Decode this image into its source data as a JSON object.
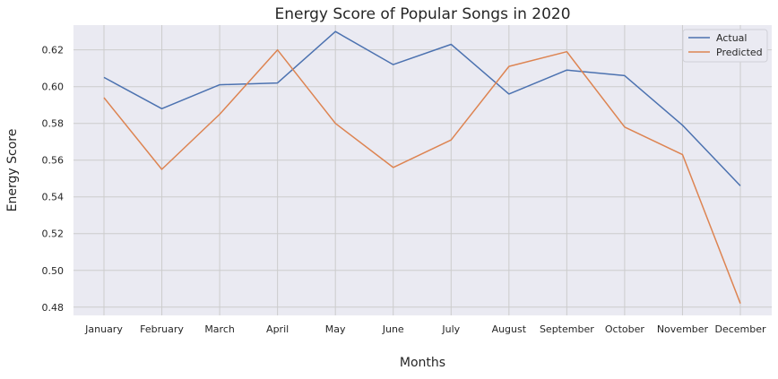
{
  "chart_data": {
    "type": "line",
    "title": "Energy Score of Popular Songs in 2020",
    "xlabel": "Months",
    "ylabel": "Energy Score",
    "categories": [
      "January",
      "February",
      "March",
      "April",
      "May",
      "June",
      "July",
      "August",
      "September",
      "October",
      "November",
      "December"
    ],
    "series": [
      {
        "name": "Actual",
        "color": "#4c72b0",
        "values": [
          0.605,
          0.588,
          0.601,
          0.602,
          0.63,
          0.612,
          0.623,
          0.596,
          0.609,
          0.606,
          0.579,
          0.546
        ]
      },
      {
        "name": "Predicted",
        "color": "#dd8452",
        "values": [
          0.594,
          0.555,
          0.585,
          0.62,
          0.58,
          0.556,
          0.571,
          0.611,
          0.619,
          0.578,
          0.563,
          0.482
        ]
      }
    ],
    "ylim": [
      0.4755,
      0.6335
    ],
    "yticks": [
      "0.48",
      "0.50",
      "0.52",
      "0.54",
      "0.56",
      "0.58",
      "0.60",
      "0.62"
    ],
    "grid": true,
    "legend": "top-right",
    "background": "#eaeaf2",
    "grid_color": "#cccccc"
  }
}
